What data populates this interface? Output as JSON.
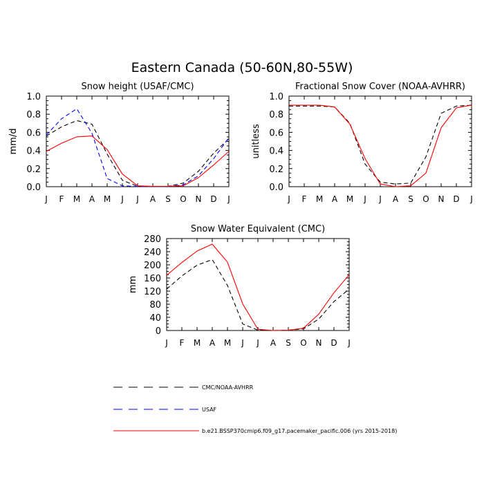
{
  "figure": {
    "title": "Eastern Canada (50-60N,80-55W)"
  },
  "legend": {
    "placement": "bottom",
    "entries": [
      {
        "label": "CMC/NOAA-AVHRR",
        "color": "#000000",
        "dashed": true
      },
      {
        "label": "USAF",
        "color": "#0000ff",
        "dashed": true
      },
      {
        "label": "b.e21.BSSP370cmip6.f09_g17.pacemaker_pacific.006 (yrs 2015-2018)",
        "color": "#ff0000",
        "dashed": false
      }
    ]
  },
  "chart_data": [
    {
      "type": "line",
      "title": "Snow height (USAF/CMC)",
      "xlabel": "",
      "ylabel": "mm/d",
      "categories": [
        "J",
        "F",
        "M",
        "A",
        "M",
        "J",
        "J",
        "A",
        "S",
        "O",
        "N",
        "D",
        "J"
      ],
      "ylim": [
        0,
        1.0
      ],
      "yticks": [
        0.0,
        0.2,
        0.4,
        0.6,
        0.8,
        1.0
      ],
      "ytick_labels": [
        "0.0",
        "0.2",
        "0.4",
        "0.6",
        "0.8",
        "1.0"
      ],
      "grid": false,
      "series": [
        {
          "name": "CMC/NOAA-AVHRR",
          "color": "#000000",
          "dashed": true,
          "values": [
            0.56,
            0.66,
            0.73,
            0.69,
            0.36,
            0.07,
            0.005,
            0.003,
            0.004,
            0.04,
            0.17,
            0.37,
            0.53
          ]
        },
        {
          "name": "USAF",
          "color": "#0000ff",
          "dashed": true,
          "values": [
            0.57,
            0.75,
            0.86,
            0.59,
            0.09,
            0.01,
            0.002,
            0.001,
            0.002,
            0.02,
            0.12,
            0.31,
            0.54
          ]
        },
        {
          "name": "b.e21.BSSP370cmip6.f09_g17.pacemaker_pacific.006 (yrs 2015-2018)",
          "color": "#ff0000",
          "dashed": false,
          "values": [
            0.39,
            0.48,
            0.55,
            0.56,
            0.41,
            0.14,
            0.01,
            0.003,
            0.004,
            0.01,
            0.1,
            0.24,
            0.39
          ]
        }
      ]
    },
    {
      "type": "line",
      "title": "Fractional Snow Cover (NOAA-AVHRR)",
      "xlabel": "",
      "ylabel": "unitless",
      "categories": [
        "J",
        "F",
        "M",
        "A",
        "M",
        "J",
        "J",
        "A",
        "S",
        "O",
        "N",
        "D",
        "J"
      ],
      "ylim": [
        0,
        1.0
      ],
      "yticks": [
        0.0,
        0.2,
        0.4,
        0.6,
        0.8,
        1.0
      ],
      "ytick_labels": [
        "0.0",
        "0.2",
        "0.4",
        "0.6",
        "0.8",
        "1.0"
      ],
      "grid": false,
      "series": [
        {
          "name": "CMC/NOAA-AVHRR",
          "color": "#000000",
          "dashed": true,
          "values": [
            0.89,
            0.89,
            0.89,
            0.88,
            0.7,
            0.25,
            0.05,
            0.03,
            0.04,
            0.33,
            0.81,
            0.89,
            0.9
          ]
        },
        {
          "name": "b.e21.BSSP370cmip6.f09_g17.pacemaker_pacific.006 (yrs 2015-2018)",
          "color": "#ff0000",
          "dashed": false,
          "values": [
            0.9,
            0.9,
            0.9,
            0.88,
            0.69,
            0.31,
            0.03,
            0.0,
            0.01,
            0.15,
            0.65,
            0.87,
            0.9
          ]
        }
      ]
    },
    {
      "type": "line",
      "title": "Snow Water Equivalent (CMC)",
      "xlabel": "",
      "ylabel": "mm",
      "categories": [
        "J",
        "F",
        "M",
        "A",
        "M",
        "J",
        "J",
        "A",
        "S",
        "O",
        "N",
        "D",
        "J"
      ],
      "ylim": [
        0,
        280
      ],
      "yticks": [
        0,
        40,
        80,
        120,
        160,
        200,
        240,
        280
      ],
      "ytick_labels": [
        "0",
        "40",
        "80",
        "120",
        "160",
        "200",
        "240",
        "280"
      ],
      "grid": false,
      "series": [
        {
          "name": "CMC/NOAA-AVHRR",
          "color": "#000000",
          "dashed": true,
          "values": [
            126,
            166,
            199,
            216,
            137,
            20,
            1,
            0,
            1,
            5,
            35,
            88,
            126
          ]
        },
        {
          "name": "b.e21.BSSP370cmip6.f09_g17.pacemaker_pacific.006 (yrs 2015-2018)",
          "color": "#ff0000",
          "dashed": false,
          "values": [
            168,
            207,
            242,
            263,
            208,
            81,
            4,
            0,
            1,
            7,
            50,
            115,
            170
          ]
        }
      ]
    }
  ]
}
